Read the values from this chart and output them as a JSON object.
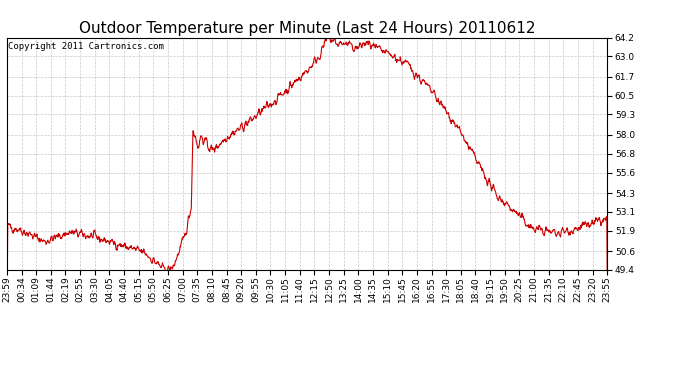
{
  "title": "Outdoor Temperature per Minute (Last 24 Hours) 20110612",
  "copyright": "Copyright 2011 Cartronics.com",
  "line_color": "#cc0000",
  "bg_color": "#ffffff",
  "plot_bg_color": "#ffffff",
  "grid_color": "#bbbbbb",
  "ylim": [
    49.4,
    64.2
  ],
  "yticks": [
    49.4,
    50.6,
    51.9,
    53.1,
    54.3,
    55.6,
    56.8,
    58.0,
    59.3,
    60.5,
    61.7,
    63.0,
    64.2
  ],
  "x_labels": [
    "23:59",
    "00:34",
    "01:09",
    "01:44",
    "02:19",
    "02:55",
    "03:30",
    "04:05",
    "04:40",
    "05:15",
    "05:50",
    "06:25",
    "07:00",
    "07:35",
    "08:10",
    "08:45",
    "09:20",
    "09:55",
    "10:30",
    "11:05",
    "11:40",
    "12:15",
    "12:50",
    "13:25",
    "14:00",
    "14:35",
    "15:10",
    "15:45",
    "16:20",
    "16:55",
    "17:30",
    "18:05",
    "18:40",
    "19:15",
    "19:50",
    "20:25",
    "21:00",
    "21:35",
    "22:10",
    "22:45",
    "23:20",
    "23:55"
  ],
  "line_width": 0.8,
  "title_fontsize": 11,
  "copyright_fontsize": 6.5,
  "tick_fontsize": 6.5
}
